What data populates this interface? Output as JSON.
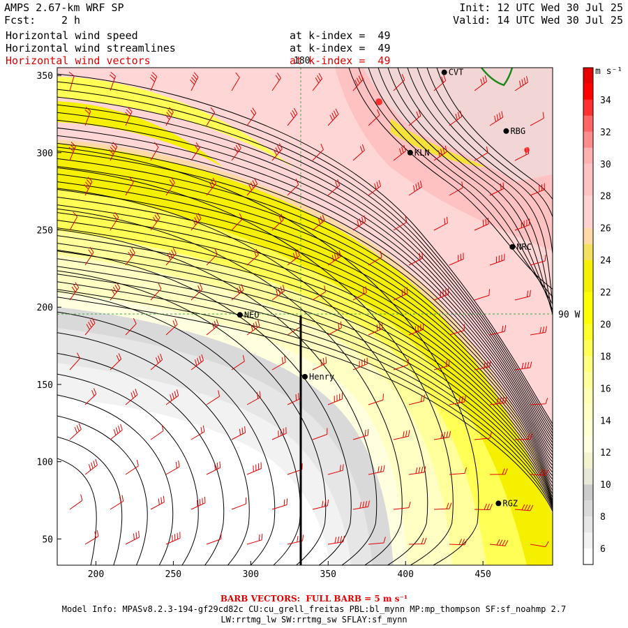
{
  "header": {
    "model_title": "AMPS 2.67-km WRF SP",
    "fcst_label": "Fcst:",
    "fcst_value": "2 h",
    "init": "Init: 12 UTC Wed 30 Jul 25",
    "valid": "Valid: 14 UTC Wed 30 Jul 25"
  },
  "fields": [
    {
      "name": "Horizontal wind speed",
      "level": "at k-index =  49",
      "color": "#000000"
    },
    {
      "name": "Horizontal wind streamlines",
      "level": "at k-index =  49",
      "color": "#000000"
    },
    {
      "name": "Horizontal wind vectors",
      "level": "at k-index =  49",
      "color": "#e00000"
    }
  ],
  "map": {
    "x_ticks": [
      "200",
      "250",
      "300",
      "350",
      "400",
      "450"
    ],
    "y_ticks": [
      "350",
      "300",
      "250",
      "200",
      "150",
      "100",
      "50"
    ],
    "x_range": [
      175,
      495
    ],
    "y_range": [
      33,
      355
    ],
    "meridian_label": "180",
    "parallel_label": "90 W",
    "stations": [
      {
        "name": "CVT",
        "x": 425,
        "y": 352
      },
      {
        "name": "RBG",
        "x": 465,
        "y": 314
      },
      {
        "name": "KLN",
        "x": 403,
        "y": 300
      },
      {
        "name": "NRC",
        "x": 469,
        "y": 239
      },
      {
        "name": "NEO",
        "x": 293,
        "y": 195
      },
      {
        "name": "Henry",
        "x": 335,
        "y": 155
      },
      {
        "name": "RGZ",
        "x": 460,
        "y": 73
      }
    ],
    "colors": {
      "barb": "#e00000",
      "streamline": "#000000",
      "coast": "#1a8a1a",
      "guide": "#3fa83f"
    }
  },
  "colorbar": {
    "unit": "m s⁻¹",
    "labels": [
      "34",
      "32",
      "30",
      "28",
      "26",
      "24",
      "22",
      "20",
      "18",
      "16",
      "14",
      "12",
      "10",
      "8",
      "6"
    ],
    "bins": [
      {
        "from": 5,
        "to": 6,
        "color": "#ffffff"
      },
      {
        "from": 6,
        "to": 7,
        "color": "#f2f2f2"
      },
      {
        "from": 7,
        "to": 8,
        "color": "#e6e6e6"
      },
      {
        "from": 8,
        "to": 9,
        "color": "#d9d9d9"
      },
      {
        "from": 9,
        "to": 10,
        "color": "#cccccc"
      },
      {
        "from": 10,
        "to": 11,
        "color": "#e8e8d8"
      },
      {
        "from": 11,
        "to": 12,
        "color": "#f3f3d0"
      },
      {
        "from": 12,
        "to": 13,
        "color": "#ffffe0"
      },
      {
        "from": 13,
        "to": 14,
        "color": "#ffffd0"
      },
      {
        "from": 14,
        "to": 15,
        "color": "#ffffc4"
      },
      {
        "from": 15,
        "to": 16,
        "color": "#ffffb4"
      },
      {
        "from": 16,
        "to": 17,
        "color": "#ffff9c"
      },
      {
        "from": 17,
        "to": 18,
        "color": "#ffff80"
      },
      {
        "from": 18,
        "to": 19,
        "color": "#ffff55"
      },
      {
        "from": 19,
        "to": 20,
        "color": "#ffff2a"
      },
      {
        "from": 20,
        "to": 22,
        "color": "#ffff00"
      },
      {
        "from": 22,
        "to": 24,
        "color": "#f4f000"
      },
      {
        "from": 24,
        "to": 25,
        "color": "#f2e060"
      },
      {
        "from": 25,
        "to": 26,
        "color": "#ffd9a6"
      },
      {
        "from": 26,
        "to": 28,
        "color": "#ffd2d2"
      },
      {
        "from": 28,
        "to": 30,
        "color": "#ffc2c2"
      },
      {
        "from": 30,
        "to": 31,
        "color": "#ffb0b0"
      },
      {
        "from": 31,
        "to": 32,
        "color": "#ff8c8c"
      },
      {
        "from": 32,
        "to": 33,
        "color": "#ff6666"
      },
      {
        "from": 33,
        "to": 34,
        "color": "#ff3030"
      },
      {
        "from": 34,
        "to": 35,
        "color": "#ff0000"
      },
      {
        "from": 35,
        "to": 36,
        "color": "#e80000"
      }
    ]
  },
  "footer": {
    "barb_note": "BARB VECTORS:  FULL BARB = 5 m s⁻¹",
    "model_info": "Model Info: MPASv8.2.3-194-gf29cd82c CU:cu_grell_freitas PBL:bl_mynn MP:mp_thompson SF:sf_noahmp 2.7",
    "model_info_2": "LW:rrtmg_lw SW:rrtmg_sw SFLAY:sf_mynn"
  }
}
